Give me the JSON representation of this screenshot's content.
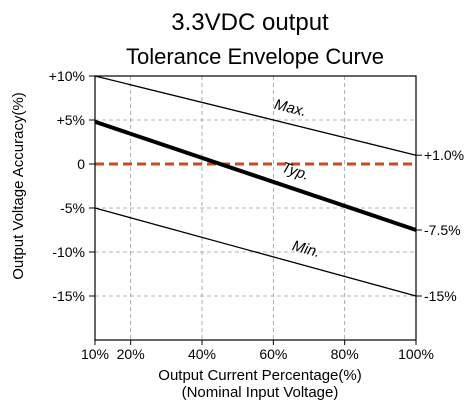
{
  "chart_data": {
    "type": "line",
    "title": "3.3VDC output",
    "subtitle": "Tolerance Envelope  Curve",
    "xlabel": "Output Current Percentage(%)",
    "xlabel_note": "(Nominal Input Voltage)",
    "ylabel": "Output Voltage Accuracy(%)",
    "xlim": [
      10,
      100
    ],
    "ylim": [
      -20,
      10
    ],
    "x_ticks": [
      {
        "value": 10,
        "label": "10%"
      },
      {
        "value": 20,
        "label": "20%"
      },
      {
        "value": 40,
        "label": "40%"
      },
      {
        "value": 60,
        "label": "60%"
      },
      {
        "value": 80,
        "label": "80%"
      },
      {
        "value": 100,
        "label": "100%"
      }
    ],
    "y_ticks": [
      {
        "value": 10,
        "label": "+10%"
      },
      {
        "value": 5,
        "label": "+5%"
      },
      {
        "value": 0,
        "label": "0"
      },
      {
        "value": -5,
        "label": "-5%"
      },
      {
        "value": -10,
        "label": "-10%"
      },
      {
        "value": -15,
        "label": "-15%"
      }
    ],
    "grid": true,
    "series": [
      {
        "name": "Max.",
        "x": [
          10,
          100
        ],
        "y": [
          10,
          1.0
        ],
        "end_label": "+1.0%",
        "color": "#000000",
        "label_at": 55
      },
      {
        "name": "Typ.",
        "x": [
          10,
          100
        ],
        "y": [
          4.8,
          -7.5
        ],
        "end_label": "-7.5%",
        "color": "#000000",
        "label_at": 57
      },
      {
        "name": "Min.",
        "x": [
          10,
          100
        ],
        "y": [
          -5,
          -15
        ],
        "end_label": "-15%",
        "color": "#000000",
        "label_at": 60
      }
    ],
    "reference_line": {
      "y": 0,
      "color": "#cc4a1c"
    }
  }
}
